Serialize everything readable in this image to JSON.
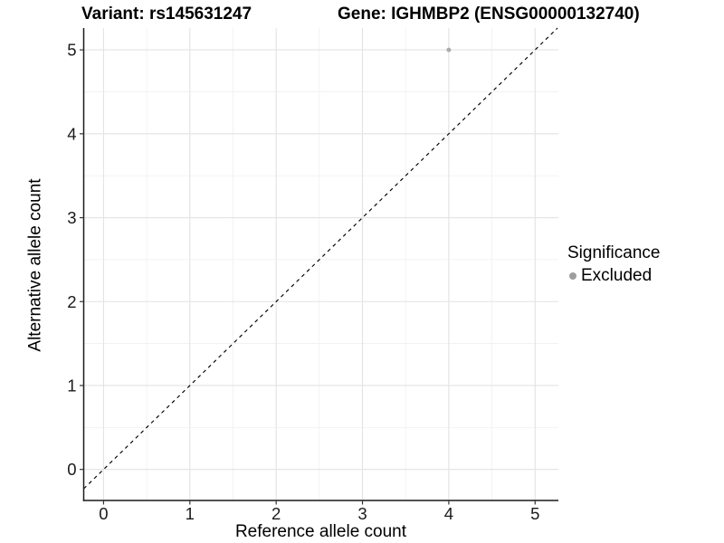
{
  "chart_data": {
    "type": "scatter",
    "title_left": "Variant: rs145631247",
    "title_right": "Gene: IGHMBP2 (ENSG00000132740)",
    "xlabel": "Reference allele count",
    "ylabel": "Alternative allele count",
    "x_ticks": [
      0,
      1,
      2,
      3,
      4,
      5
    ],
    "y_ticks": [
      0,
      1,
      2,
      3,
      4,
      5
    ],
    "xlim": [
      -0.23,
      5.27
    ],
    "ylim": [
      -0.37,
      5.26
    ],
    "minor_grid_step": 0.5,
    "grid": true,
    "legend_position": "right",
    "series": [
      {
        "name": "Excluded",
        "color": "#ACACAC",
        "points": [
          {
            "x": 4,
            "y": 5
          }
        ]
      }
    ],
    "identity_line": {
      "style": "dashed",
      "equation": "y = x",
      "color": "#000000"
    },
    "legend": {
      "title": "Significance",
      "items": [
        {
          "label": "Excluded",
          "color": "#9E9E9E"
        }
      ]
    },
    "colors": {
      "grid_major": "#E3E3E3",
      "grid_minor": "#F1F1F1",
      "axis_line": "#1A1A1A",
      "tick_mark": "#333333",
      "tick_label": "#1A1A1A"
    }
  }
}
